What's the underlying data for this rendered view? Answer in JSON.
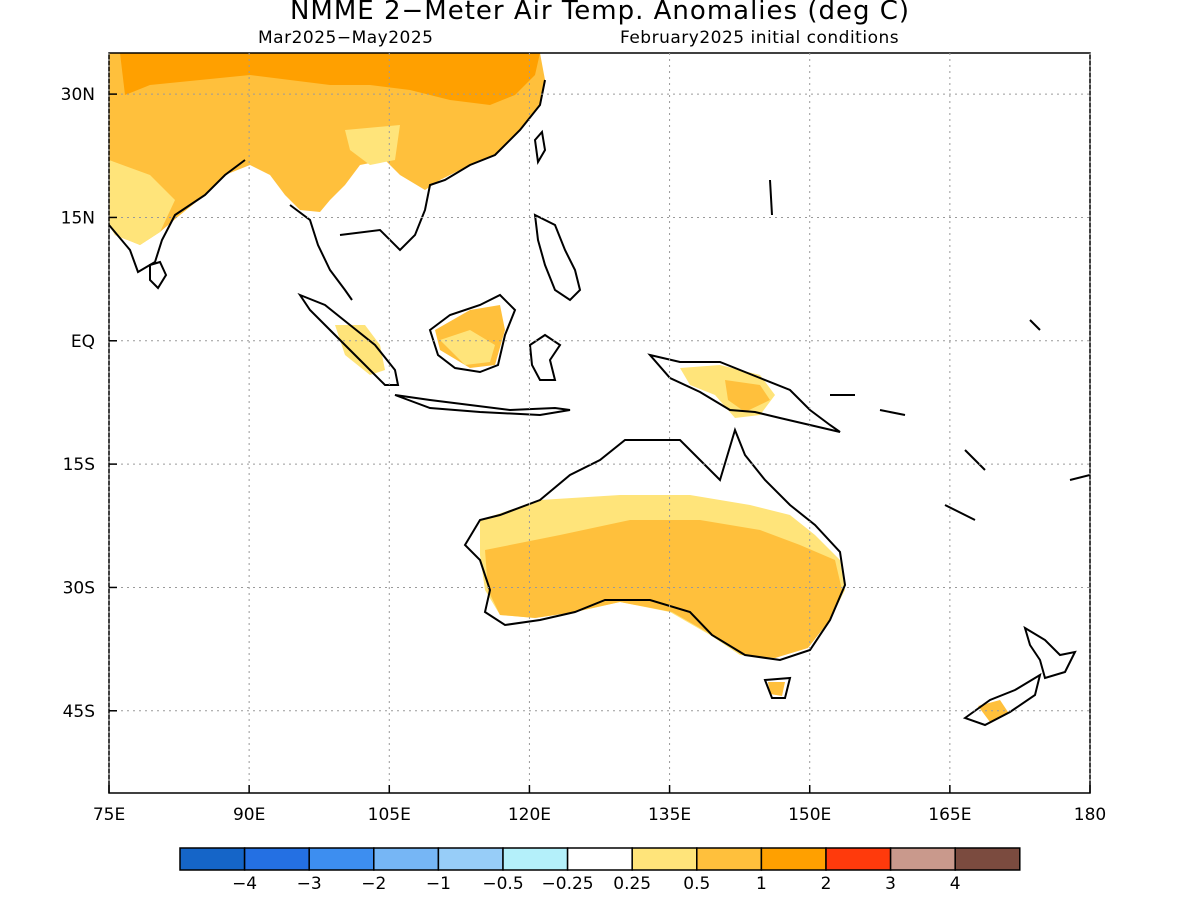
{
  "title": "NMME 2−Meter Air Temp. Anomalies (deg C)",
  "subtitle_left": "Mar2025−May2025",
  "subtitle_right": "February2025 initial conditions",
  "map": {
    "lon_range": [
      75,
      180
    ],
    "lat_range": [
      -55,
      35
    ],
    "lat_ticks": [
      {
        "value": 30,
        "label": "30N"
      },
      {
        "value": 15,
        "label": "15N"
      },
      {
        "value": 0,
        "label": "EQ"
      },
      {
        "value": -15,
        "label": "15S"
      },
      {
        "value": -30,
        "label": "30S"
      },
      {
        "value": -45,
        "label": "45S"
      }
    ],
    "lon_ticks": [
      {
        "value": 75,
        "label": "75E"
      },
      {
        "value": 90,
        "label": "90E"
      },
      {
        "value": 105,
        "label": "105E"
      },
      {
        "value": 120,
        "label": "120E"
      },
      {
        "value": 135,
        "label": "135E"
      },
      {
        "value": 150,
        "label": "150E"
      },
      {
        "value": 165,
        "label": "165E"
      },
      {
        "value": 180,
        "label": "180"
      }
    ],
    "grid": true
  },
  "colorbar": {
    "colors": [
      "#1565c8",
      "#2470e3",
      "#3d8ef0",
      "#76b6f5",
      "#97cdf8",
      "#b4f0fa",
      "#ffffff",
      "#ffe47a",
      "#ffc03c",
      "#ffa000",
      "#ff3a0c",
      "#c9998c",
      "#7b4b3f"
    ],
    "labels": [
      "−4",
      "−3",
      "−2",
      "−1",
      "−0.5",
      "−0.25",
      "0.25",
      "0.5",
      "1",
      "2",
      "3",
      "4"
    ]
  },
  "anomaly_colors": {
    "light": "#ffe47a",
    "mid": "#ffc03c",
    "strong": "#ffa000"
  }
}
